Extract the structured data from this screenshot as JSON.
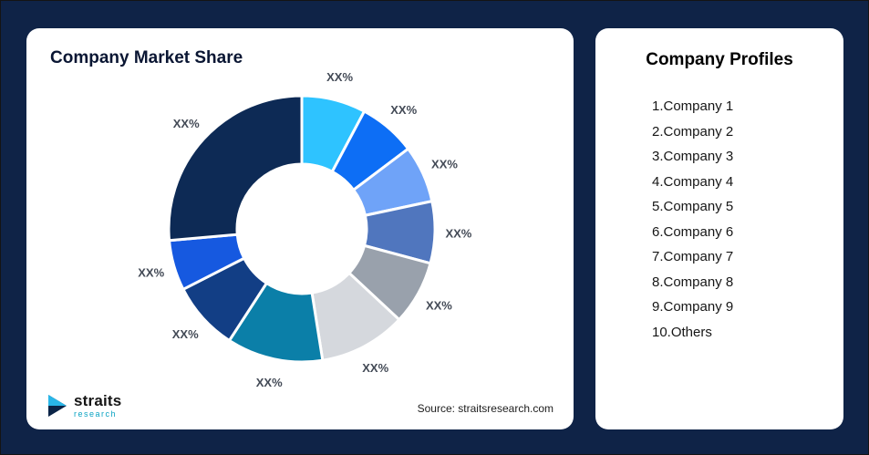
{
  "page": {
    "background_color": "#0F2347"
  },
  "market_share_card": {
    "title": "Company Market Share",
    "source_text": "Source: straitsresearch.com",
    "logo": {
      "brand": "straits",
      "sub": "research"
    }
  },
  "profiles_card": {
    "title": "Company Profiles",
    "items": [
      "1.Company 1",
      "2.Company 2",
      "3.Company 3",
      "4.Company 4",
      "5.Company 5",
      "6.Company 6",
      "7.Company 7",
      "8.Company 8",
      "9.Company 9",
      "10.Others"
    ]
  },
  "chart_data": {
    "type": "pie",
    "subtype": "donut",
    "title": "Company Market Share",
    "categories": [
      "Company 1",
      "Company 2",
      "Company 3",
      "Company 4",
      "Company 5",
      "Company 6",
      "Company 7",
      "Company 8",
      "Company 9",
      "Others"
    ],
    "slice_labels": [
      "XX%",
      "XX%",
      "XX%",
      "XX%",
      "XX%",
      "XX%",
      "XX%",
      "XX%",
      "XX%",
      "XX%"
    ],
    "values": [
      28,
      25,
      25,
      27,
      28,
      38,
      42,
      30,
      22,
      95
    ],
    "values_unit": "degrees-estimated-share",
    "colors": [
      "#2EC3FF",
      "#0D6EF5",
      "#6FA3F8",
      "#5076BE",
      "#99A1AC",
      "#D5D8DD",
      "#0B7FA8",
      "#123E85",
      "#1659E0",
      "#0D2A55"
    ],
    "start_angle_deg": 0,
    "legend": "none",
    "slice_gap_color": "#FFFFFF"
  }
}
